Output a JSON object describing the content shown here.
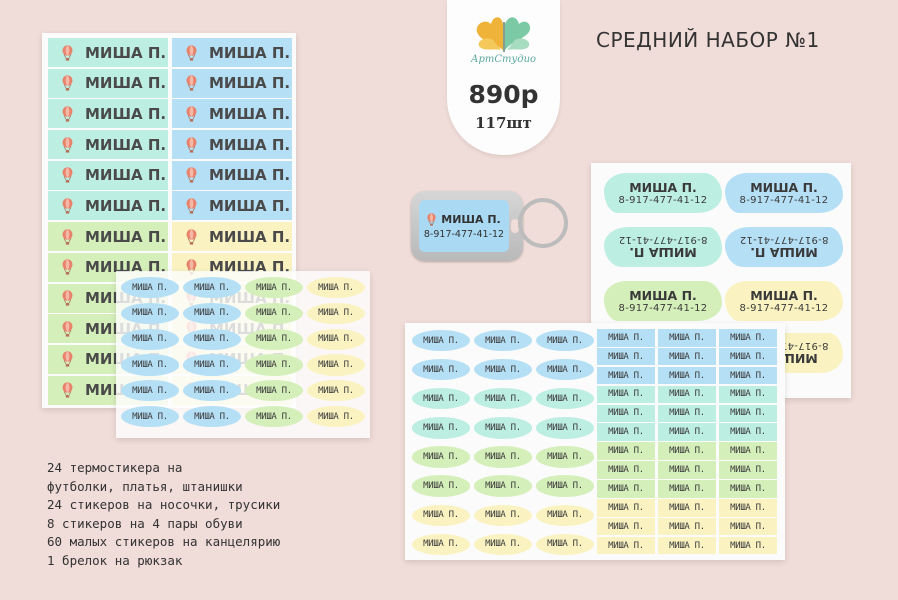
{
  "title": "СРЕДНИЙ НАБОР №1",
  "badge": {
    "brand": "АртСтудио",
    "price": "890р",
    "quantity": "117шт"
  },
  "sticker_name": "МИША П.",
  "sticker_phone": "8-917-477-41-12",
  "keychain": {
    "name": "МИША П.",
    "phone": "8-917-477-41-12"
  },
  "colors": {
    "background": "#f0dcd8",
    "mint": "#bdeee2",
    "sky": "#b5dff5",
    "lime": "#d5efba",
    "cream": "#faf3c1",
    "balloon": "#e8826a"
  },
  "description": [
    "24 термостикера на",
    "футболки, платья, штанишки",
    "24 стикеров на носочки, трусики",
    "8 стикеров на 4 пары обуви",
    "60 малых стикеров на канцелярию",
    "1 брелок на рюкзак"
  ]
}
